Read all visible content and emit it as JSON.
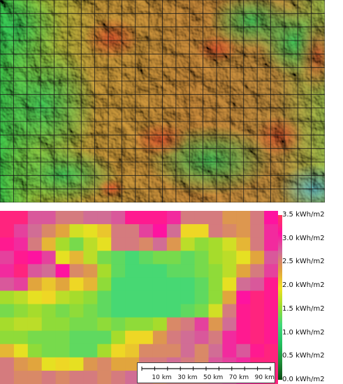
{
  "terrain_map": {
    "grid_cols": 24,
    "grid_rows": 15
  },
  "irradiance_map": {
    "cols": 20,
    "rows": 13,
    "value_range_kwh_m2": [
      0.0,
      3.5
    ],
    "colorbar": {
      "ticks": [
        {
          "value": 3.5,
          "label": "3.5 kWh/m2"
        },
        {
          "value": 3.0,
          "label": "3.0 kWh/m2"
        },
        {
          "value": 2.5,
          "label": "2.5 kWh/m2"
        },
        {
          "value": 2.0,
          "label": "2.0 kWh/m2"
        },
        {
          "value": 1.5,
          "label": "1.5 kWh/m2"
        },
        {
          "value": 1.0,
          "label": "1.0 kWh/m2"
        },
        {
          "value": 0.5,
          "label": "0.5 kWh/m2"
        },
        {
          "value": 0.0,
          "label": "0.0 kWh/m2"
        }
      ],
      "colors": [
        "#0a4a12",
        "#1f8f3a",
        "#22c060",
        "#3fd87a",
        "#9cdc2e",
        "#f0e020",
        "#e0a040",
        "#d06a9a",
        "#ff10a0",
        "#ff3a5a"
      ]
    },
    "values": [
      [
        3.3,
        3.3,
        2.8,
        2.8,
        2.6,
        2.6,
        2.7,
        2.7,
        2.8,
        3.2,
        3.2,
        3.2,
        3.0,
        2.6,
        2.6,
        2.6,
        2.4,
        2.4,
        2.6,
        3.1
      ],
      [
        3.3,
        2.9,
        2.7,
        2.5,
        2.3,
        1.8,
        1.9,
        2.1,
        2.6,
        2.6,
        2.9,
        3.1,
        2.7,
        2.0,
        2.0,
        2.6,
        2.5,
        2.4,
        2.6,
        3.0
      ],
      [
        3.2,
        3.0,
        2.6,
        2.2,
        1.6,
        1.4,
        1.7,
        1.9,
        2.6,
        2.6,
        2.5,
        2.7,
        2.4,
        1.7,
        1.5,
        1.6,
        1.8,
        2.2,
        2.6,
        3.0
      ],
      [
        2.9,
        3.2,
        3.1,
        2.9,
        1.9,
        2.2,
        1.7,
        1.4,
        1.3,
        1.2,
        1.3,
        1.4,
        1.4,
        1.3,
        1.4,
        1.6,
        1.7,
        1.9,
        2.3,
        2.8
      ],
      [
        3.0,
        3.3,
        2.8,
        2.7,
        3.1,
        2.5,
        2.4,
        1.6,
        1.3,
        1.2,
        1.2,
        1.2,
        1.3,
        1.3,
        1.4,
        1.5,
        1.7,
        2.3,
        2.6,
        2.9
      ],
      [
        2.8,
        2.9,
        2.3,
        2.1,
        2.3,
        2.0,
        2.2,
        1.5,
        1.2,
        1.2,
        1.2,
        1.2,
        1.2,
        1.2,
        1.3,
        1.5,
        1.9,
        2.7,
        2.8,
        3.2
      ],
      [
        1.6,
        1.7,
        1.9,
        2.0,
        1.7,
        1.6,
        1.5,
        1.3,
        1.2,
        1.2,
        1.2,
        1.2,
        1.2,
        1.2,
        1.3,
        1.5,
        2.3,
        3.1,
        3.3,
        3.2
      ],
      [
        1.4,
        1.5,
        1.6,
        1.5,
        1.4,
        1.5,
        1.4,
        1.3,
        1.2,
        1.2,
        1.2,
        1.2,
        1.2,
        1.3,
        1.4,
        1.8,
        2.6,
        3.2,
        3.3,
        3.2
      ],
      [
        1.6,
        1.7,
        1.7,
        1.5,
        1.5,
        1.4,
        1.4,
        1.5,
        1.4,
        1.5,
        1.5,
        1.6,
        2.5,
        2.6,
        2.9,
        2.4,
        2.7,
        3.2,
        3.3,
        3.2
      ],
      [
        1.5,
        1.5,
        1.4,
        1.4,
        1.4,
        1.3,
        1.3,
        1.3,
        1.6,
        2.0,
        2.0,
        2.4,
        2.6,
        2.7,
        2.8,
        2.6,
        3.0,
        3.2,
        3.3,
        3.2
      ],
      [
        2.2,
        1.9,
        1.5,
        1.4,
        1.4,
        1.3,
        1.3,
        1.6,
        2.0,
        2.1,
        2.5,
        2.5,
        2.5,
        2.7,
        2.5,
        2.7,
        3.0,
        2.8,
        3.2,
        3.3
      ],
      [
        2.6,
        2.4,
        2.3,
        1.9,
        2.0,
        1.9,
        2.4,
        2.5,
        2.3,
        2.3,
        2.6,
        2.6,
        2.7,
        2.6,
        2.5,
        2.8,
        2.9,
        3.0,
        3.3,
        3.3
      ],
      [
        2.6,
        2.5,
        2.5,
        2.6,
        2.5,
        2.6,
        2.6,
        2.5,
        2.6,
        2.7,
        2.6,
        2.5,
        2.6,
        2.6,
        2.6,
        2.7,
        2.8,
        3.0,
        3.2,
        3.3
      ]
    ]
  },
  "scale_bar": {
    "labels": [
      "10 km",
      "30 km",
      "50 km",
      "70 km",
      "90 km"
    ],
    "km_values": [
      10,
      30,
      50,
      70,
      90
    ],
    "max_km": 100
  }
}
